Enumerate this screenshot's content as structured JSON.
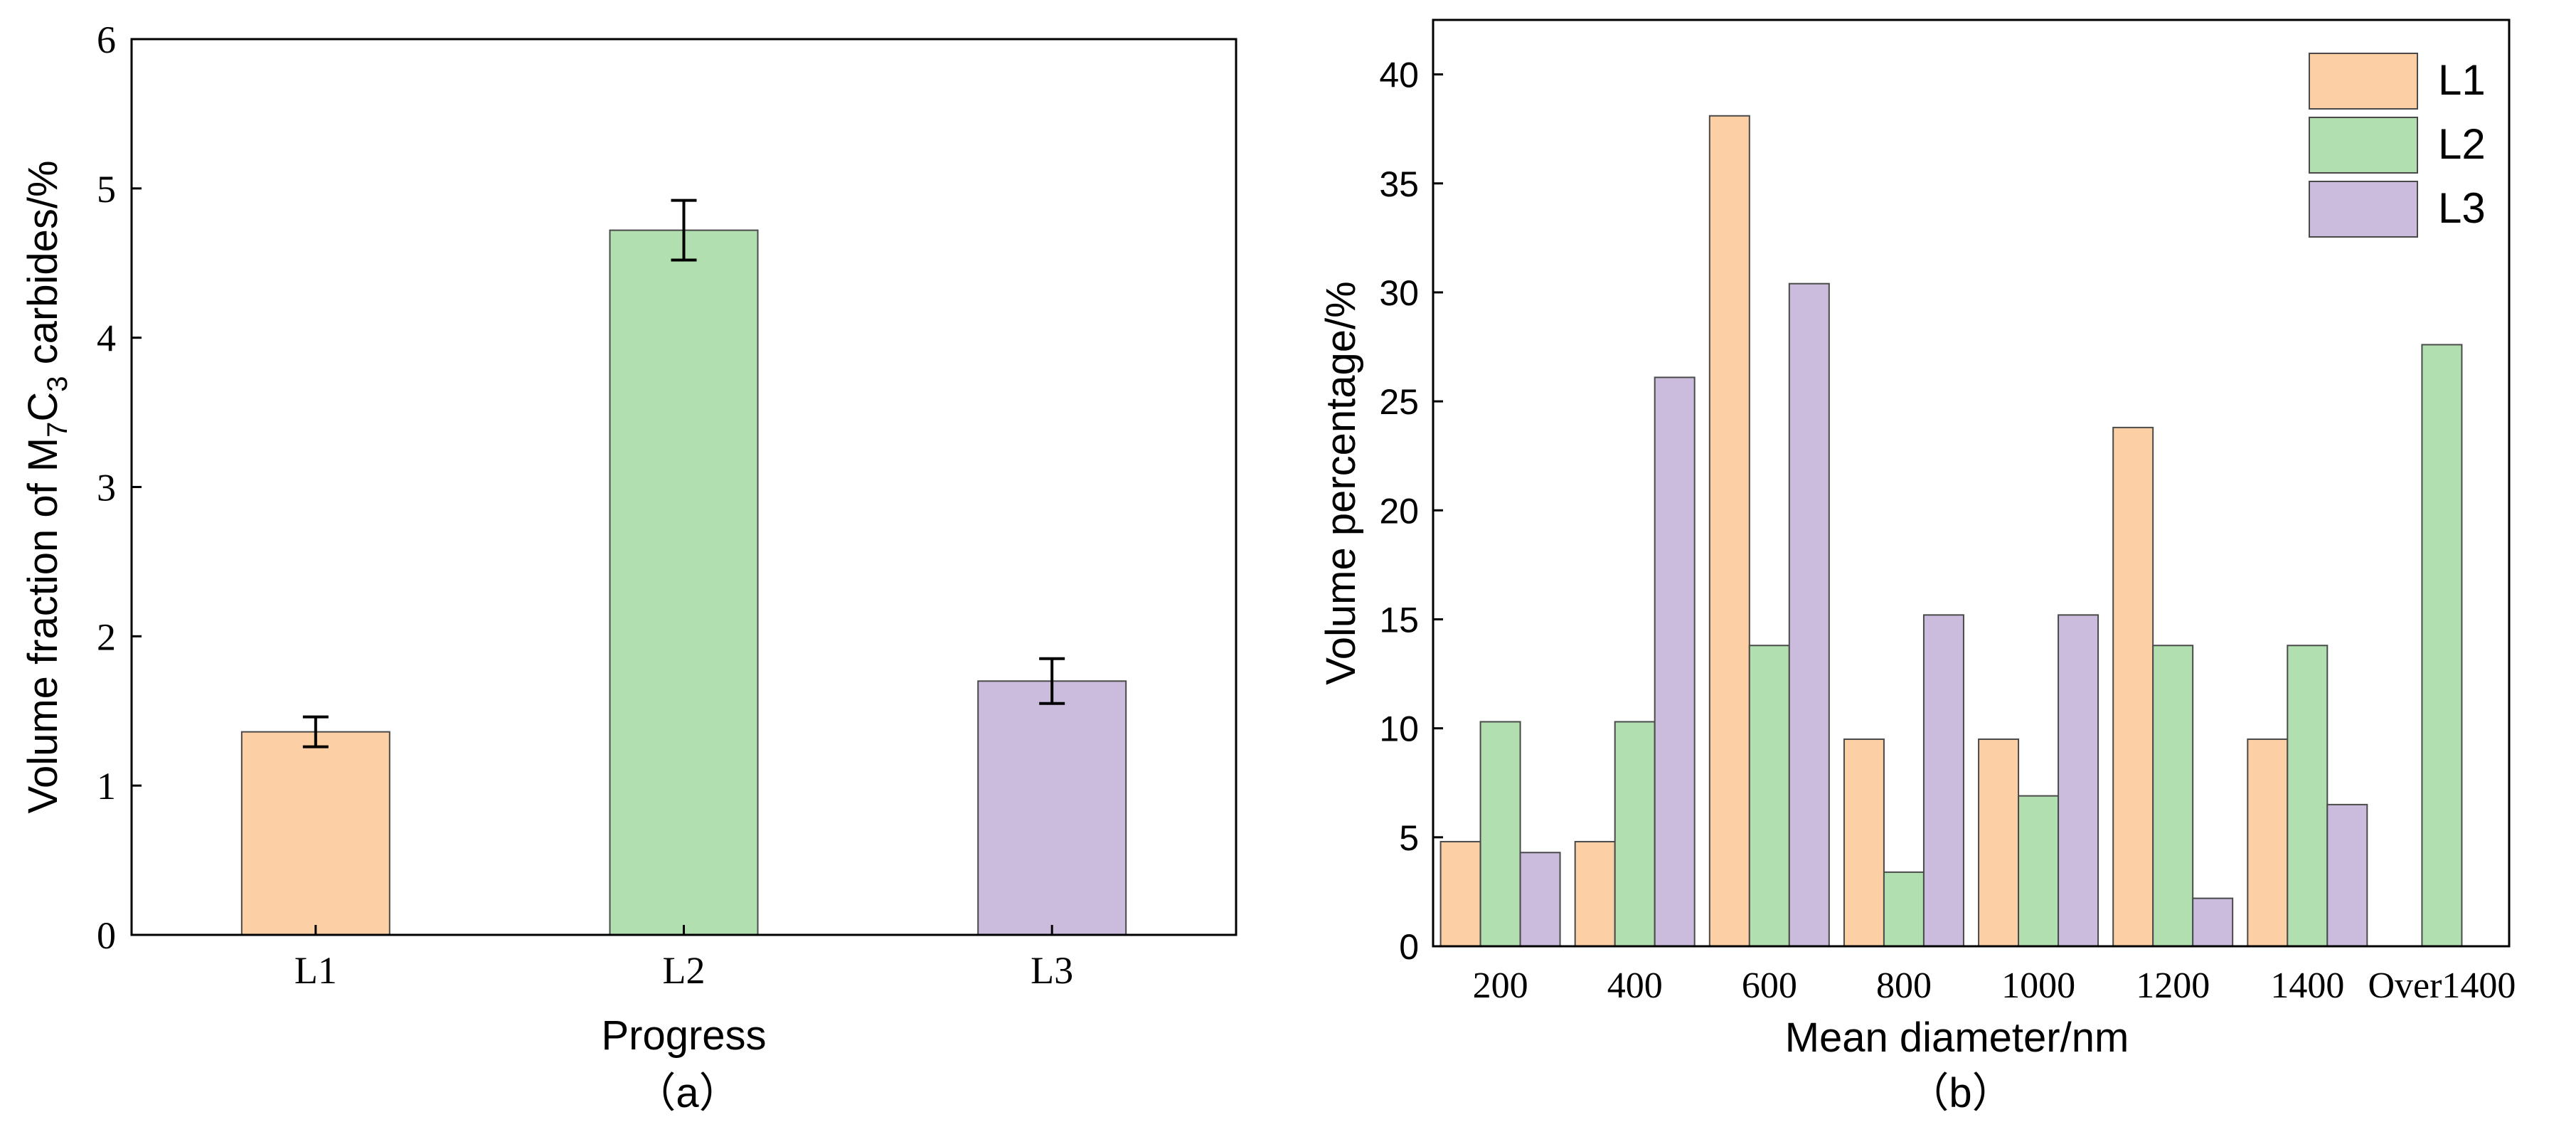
{
  "colors": {
    "L1": "#fccfa4",
    "L2": "#b1dfb0",
    "L3": "#cbbcdd",
    "edge": "#4a4a4a",
    "axis": "#000000"
  },
  "chart_data": [
    {
      "type": "bar",
      "panel_label": "（a）",
      "xlabel": "Progress",
      "ylabel_parts": [
        "Volume fraction of M",
        "7",
        "C",
        "3",
        " carbides/%"
      ],
      "categories": [
        "L1",
        "L2",
        "L3"
      ],
      "values": [
        1.36,
        4.72,
        1.7
      ],
      "errors": [
        0.1,
        0.2,
        0.15
      ],
      "ylim": [
        0,
        6
      ],
      "yticks": [
        "0",
        "1",
        "2",
        "3",
        "4",
        "5",
        "6"
      ],
      "grid": false,
      "legend": false
    },
    {
      "type": "bar",
      "panel_label": "（b）",
      "xlabel": "Mean diameter/nm",
      "ylabel": "Volume percentage/%",
      "categories": [
        "200",
        "400",
        "600",
        "800",
        "1000",
        "1200",
        "1400",
        "Over1400"
      ],
      "series": [
        {
          "name": "L1",
          "values": [
            4.8,
            4.8,
            38.1,
            9.5,
            9.5,
            23.8,
            9.5,
            0
          ]
        },
        {
          "name": "L2",
          "values": [
            10.3,
            10.3,
            13.8,
            3.4,
            6.9,
            13.8,
            13.8,
            27.6
          ]
        },
        {
          "name": "L3",
          "values": [
            4.3,
            26.1,
            30.4,
            15.2,
            15.2,
            2.2,
            6.5,
            0
          ]
        }
      ],
      "ylim": [
        0,
        42.5
      ],
      "yticks": [
        "0",
        "5",
        "10",
        "15",
        "20",
        "25",
        "30",
        "35",
        "40"
      ],
      "legend_position": "top-right",
      "grid": false
    }
  ]
}
